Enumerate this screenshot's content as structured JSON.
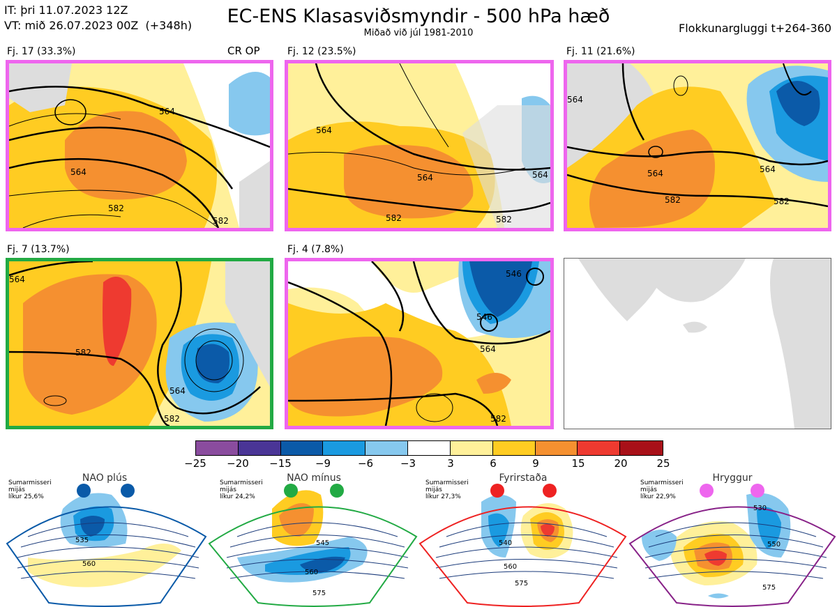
{
  "header": {
    "init_time": "IT: þri 11.07.2023 12Z",
    "valid_time": "VT: mið 26.07.2023 00Z  (+348h)",
    "title": "EC-ENS Klasasviðsmyndir - 500 hPa hæð",
    "subtitle": "Miðað við júl 1981-2010",
    "window": "Flokkunargluggi t+264-360",
    "crop_label": "CR OP"
  },
  "panels": [
    {
      "label": "Fj. 17 (33.3%)",
      "border": "#ee66ee",
      "contours": [
        "564",
        "564",
        "582",
        "582"
      ]
    },
    {
      "label": "Fj. 12 (23.5%)",
      "border": "#ee66ee",
      "contours": [
        "564",
        "564",
        "582",
        "582",
        "564"
      ]
    },
    {
      "label": "Fj. 11 (21.6%)",
      "border": "#ee66ee",
      "contours": [
        "564",
        "564",
        "582",
        "582",
        "564"
      ]
    },
    {
      "label": "Fj. 7 (13.7%)",
      "border": "#22aa44",
      "contours": [
        "564",
        "582",
        "564",
        "582"
      ]
    },
    {
      "label": "Fj. 4 (7.8%)",
      "border": "#ee66ee",
      "contours": [
        "546",
        "546",
        "564",
        "582"
      ]
    }
  ],
  "colorbar": {
    "ticks": [
      "−25",
      "−20",
      "−15",
      "−9",
      "−6",
      "−3",
      "3",
      "6",
      "9",
      "15",
      "20",
      "25"
    ],
    "colors": [
      "#8a4c9e",
      "#4a3596",
      "#0b5aa8",
      "#1a9ae0",
      "#86c8ee",
      "#ffffff",
      "#fff09a",
      "#ffcc22",
      "#f59030",
      "#ee3a30",
      "#a81018"
    ]
  },
  "regimes": [
    {
      "name": "NAO plús",
      "dot_color": "#0a5aa8",
      "border": "#0a5aa8",
      "info": "Sumarmisseri\nmijás\nlíkur 25,6%",
      "contours": [
        "535",
        "560"
      ]
    },
    {
      "name": "NAO mínus",
      "dot_color": "#22aa44",
      "border": "#22aa44",
      "info": "Sumarmisseri\nmijás\nlíkur 24,2%",
      "contours": [
        "545",
        "560",
        "575"
      ]
    },
    {
      "name": "Fyrirstaða",
      "dot_color": "#ee2222",
      "border": "#ee2222",
      "info": "Sumarmisseri\nmijás\nlíkur 27,3%",
      "contours": [
        "540",
        "560",
        "575"
      ]
    },
    {
      "name": "Hryggur",
      "dot_color": "#ee66ee",
      "border": "#882288",
      "info": "Sumarmisseri\nmijás\nlíkur 22,9%",
      "contours": [
        "530",
        "550",
        "575"
      ]
    }
  ]
}
